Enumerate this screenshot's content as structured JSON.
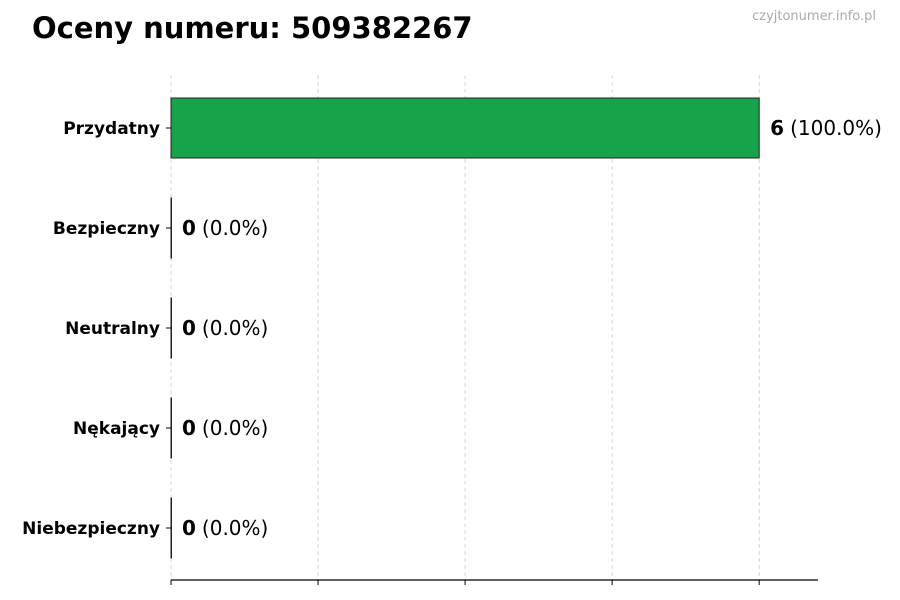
{
  "title": "Oceny numeru: 509382267",
  "watermark": "czyjtonumer.info.pl",
  "colors": {
    "bar": "#17a34a",
    "edge": "#222222",
    "grid": "#cccccc"
  },
  "chart_data": {
    "type": "bar",
    "orientation": "horizontal",
    "title": "Oceny numeru: 509382267",
    "categories": [
      "Przydatny",
      "Bezpieczny",
      "Neutralny",
      "Nękający",
      "Niebezpieczny"
    ],
    "values": [
      6,
      0,
      0,
      0,
      0
    ],
    "percent_labels": [
      "(100.0%)",
      "(0.0%)",
      "(0.0%)",
      "(0.0%)",
      "(0.0%)"
    ],
    "xlim": [
      0,
      6.6
    ],
    "xticks": [
      0,
      1.5,
      3,
      4.5,
      6
    ],
    "xtick_labels_shown": false,
    "grid": "vertical dashed",
    "legend": "none"
  }
}
